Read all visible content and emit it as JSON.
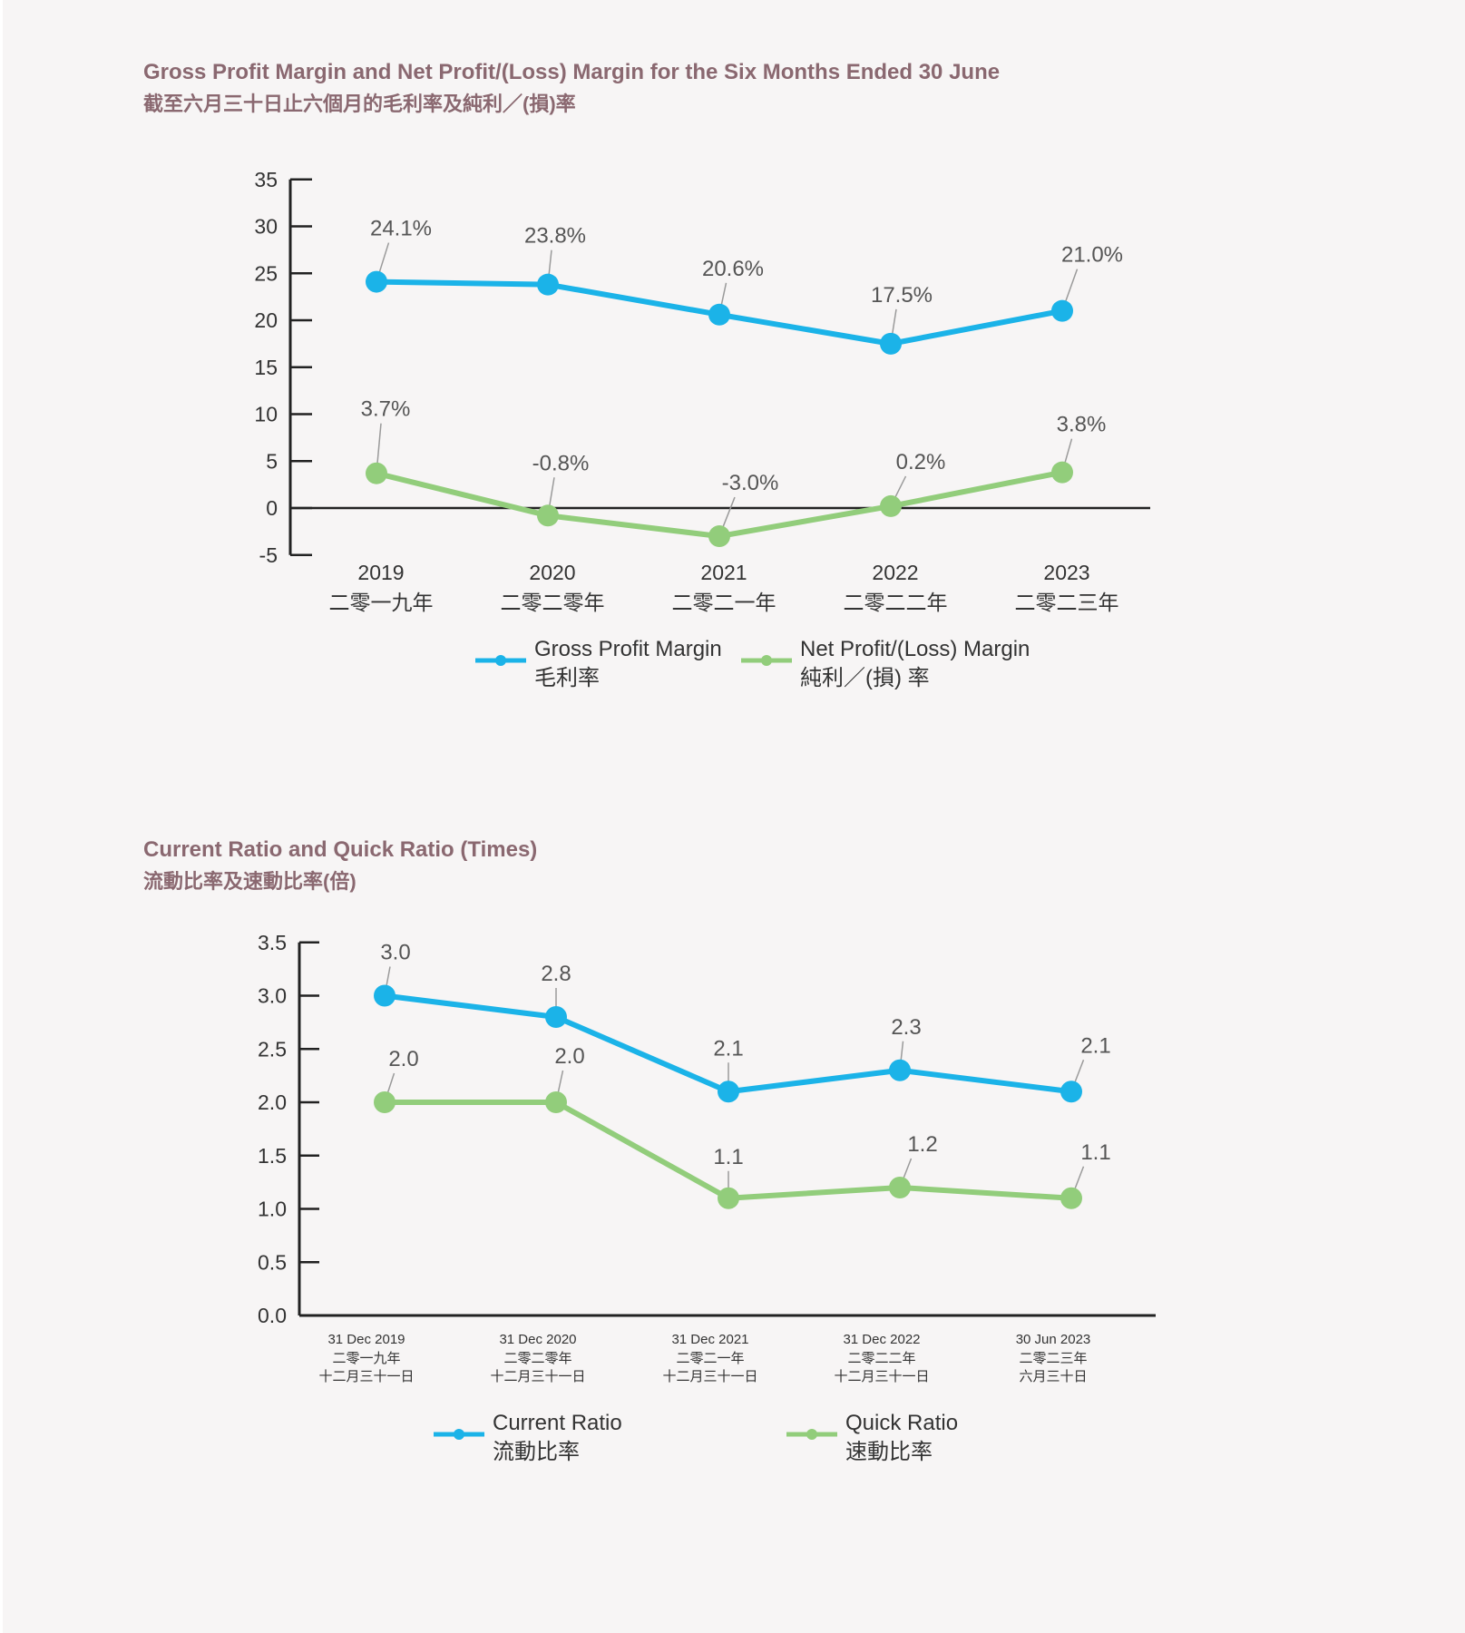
{
  "colors": {
    "blue": "#1bb3e8",
    "green": "#92cd7b",
    "title": "#8a6870",
    "axis": "#222222",
    "leader": "#9a9a9a"
  },
  "chart_data": [
    {
      "type": "line",
      "title": "Gross Profit Margin and Net Profit/(Loss) Margin for the Six Months Ended 30 June",
      "subtitle": "截至六月三十日止六個月的毛利率及純利／(損)率",
      "categories": [
        "2019",
        "2020",
        "2021",
        "2022",
        "2023"
      ],
      "categories_zh": [
        "二零一九年",
        "二零二零年",
        "二零二一年",
        "二零二二年",
        "二零二三年"
      ],
      "yticks": [
        35,
        30,
        25,
        20,
        15,
        10,
        5,
        0,
        -5
      ],
      "ylim": [
        -5,
        35
      ],
      "series": [
        {
          "name": "Gross Profit Margin",
          "name_zh": "毛利率",
          "color": "blue",
          "values": [
            24.1,
            23.8,
            20.6,
            17.5,
            21.0
          ],
          "labels": [
            "24.1%",
            "23.8%",
            "20.6%",
            "17.5%",
            "21.0%"
          ]
        },
        {
          "name": "Net Profit/(Loss) Margin",
          "name_zh": "純利／(損) 率",
          "color": "green",
          "values": [
            3.7,
            -0.8,
            -3.0,
            0.2,
            3.8
          ],
          "labels": [
            "3.7%",
            "-0.8%",
            "-3.0%",
            "0.2%",
            "3.8%"
          ]
        }
      ]
    },
    {
      "type": "line",
      "title": "Current Ratio and Quick Ratio (Times)",
      "subtitle": "流動比率及速動比率(倍)",
      "categories": [
        "31 Dec 2019",
        "31 Dec 2020",
        "31 Dec 2021",
        "31 Dec 2022",
        "30 Jun 2023"
      ],
      "categories_zh": [
        "二零一九年",
        "二零二零年",
        "二零二一年",
        "二零二二年",
        "二零二三年"
      ],
      "categories_zh2": [
        "十二月三十一日",
        "十二月三十一日",
        "十二月三十一日",
        "十二月三十一日",
        "六月三十日"
      ],
      "yticks": [
        "3.5",
        "3.0",
        "2.5",
        "2.0",
        "1.5",
        "1.0",
        "0.5",
        "0.0"
      ],
      "ylim": [
        0,
        3.5
      ],
      "series": [
        {
          "name": "Current Ratio",
          "name_zh": "流動比率",
          "color": "blue",
          "values": [
            3.0,
            2.8,
            2.1,
            2.3,
            2.1
          ],
          "labels": [
            "3.0",
            "2.8",
            "2.1",
            "2.3",
            "2.1"
          ]
        },
        {
          "name": "Quick Ratio",
          "name_zh": "速動比率",
          "color": "green",
          "values": [
            2.0,
            2.0,
            1.1,
            1.2,
            1.1
          ],
          "labels": [
            "2.0",
            "2.0",
            "1.1",
            "1.2",
            "1.1"
          ]
        }
      ]
    }
  ]
}
